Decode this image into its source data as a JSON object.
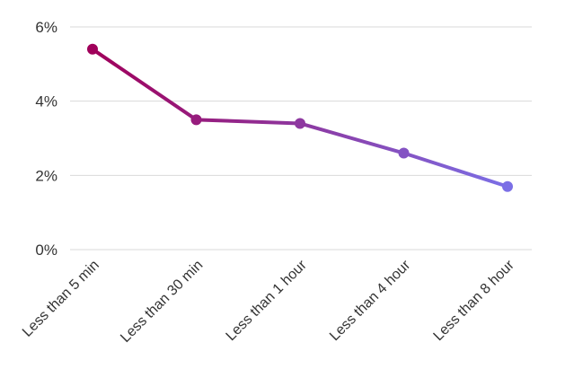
{
  "chart_data": {
    "type": "line",
    "title": "",
    "xlabel": "",
    "ylabel": "",
    "categories": [
      "Less than 5 min",
      "Less than 30 min",
      "Less than 1 hour",
      "Less than 4 hour",
      "Less than 8 hour"
    ],
    "series": [
      {
        "values": [
          5.4,
          3.5,
          3.4,
          2.6,
          1.7
        ]
      }
    ],
    "ylim": [
      0,
      6
    ],
    "yticks": [
      {
        "value": 0,
        "label": "0%"
      },
      {
        "value": 2,
        "label": "2%"
      },
      {
        "value": 4,
        "label": "4%"
      },
      {
        "value": 6,
        "label": "6%"
      }
    ],
    "grid": true,
    "legend": "none",
    "colors": {
      "start": "#a0005a",
      "end": "#7b6fe6",
      "grid": "#d9d9d9",
      "text": "#333333"
    }
  }
}
